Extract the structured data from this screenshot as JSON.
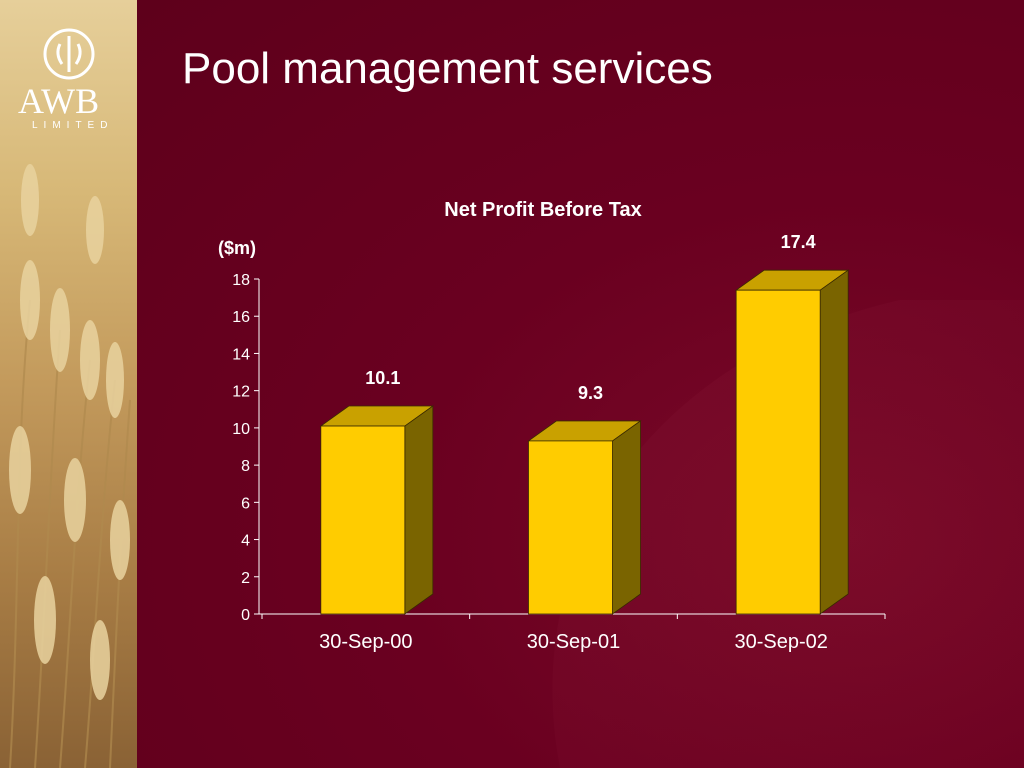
{
  "slide": {
    "title": "Pool management services"
  },
  "logo": {
    "name": "AWB",
    "sub": "LIMITED"
  },
  "colors": {
    "background": "#6a0020",
    "bar_front": "#ffcc00",
    "bar_top": "#c9a100",
    "bar_side": "#7a6400",
    "text": "#ffffff"
  },
  "chart_data": {
    "type": "bar",
    "title": "Net Profit Before Tax",
    "unit_label": "($m)",
    "categories": [
      "30-Sep-00",
      "30-Sep-01",
      "30-Sep-02"
    ],
    "values": [
      10.1,
      9.3,
      17.4
    ],
    "data_labels": [
      "10.1",
      "9.3",
      "17.4"
    ],
    "ylim": [
      0,
      18
    ],
    "yticks": [
      0,
      2,
      4,
      6,
      8,
      10,
      12,
      14,
      16,
      18
    ],
    "grid": false,
    "legend": "none",
    "style": "3d-bar"
  }
}
